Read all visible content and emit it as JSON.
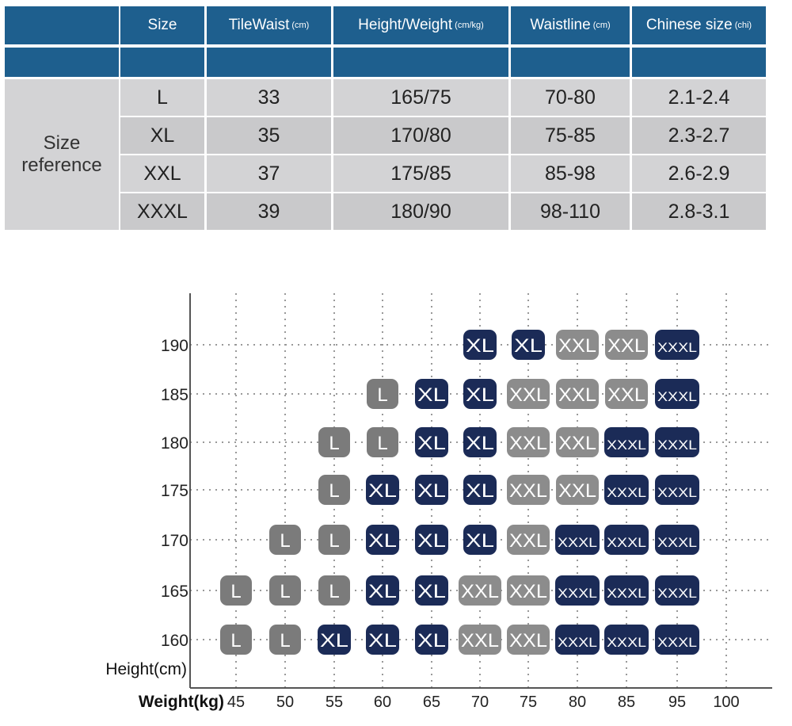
{
  "size_table": {
    "side_label": [
      "Size",
      "reference"
    ],
    "headers": [
      {
        "label": "Size",
        "unit": ""
      },
      {
        "label": "TileWaist",
        "unit": "(cm)"
      },
      {
        "label": "Height/Weight",
        "unit": "(cm/kg)"
      },
      {
        "label": "Waistline",
        "unit": "(cm)"
      },
      {
        "label": "Chinese size",
        "unit": "(chi)"
      }
    ],
    "rows": [
      [
        "L",
        "33",
        "165/75",
        "70-80",
        "2.1-2.4"
      ],
      [
        "XL",
        "35",
        "170/80",
        "75-85",
        "2.3-2.7"
      ],
      [
        "XXL",
        "37",
        "175/85",
        "85-98",
        "2.6-2.9"
      ],
      [
        "XXXL",
        "39",
        "180/90",
        "98-110",
        "2.8-3.1"
      ]
    ],
    "header_color": "#1e5f8e"
  },
  "chart_data": {
    "type": "heatmap",
    "xlabel": "Weight(kg)",
    "ylabel": "Height(cm)",
    "x_ticks": [
      "45",
      "50",
      "55",
      "60",
      "65",
      "70",
      "75",
      "80",
      "85",
      "95",
      "100"
    ],
    "y_ticks": [
      "190",
      "185",
      "180",
      "175",
      "170",
      "165",
      "160"
    ],
    "grid": true,
    "colors": {
      "L": "#7b7b7b",
      "XL": "#1b2b57",
      "XXL": "#8c8c8c",
      "XXXL": "#1b2b57"
    },
    "cells": [
      [
        "",
        "",
        "",
        "",
        "",
        "XL",
        "XL",
        "XXL",
        "XXL",
        "XXXL"
      ],
      [
        "",
        "",
        "",
        "L",
        "XL",
        "XL",
        "XXL",
        "XXL",
        "XXL",
        "XXXL"
      ],
      [
        "",
        "",
        "L",
        "L",
        "XL",
        "XL",
        "XXL",
        "XXL",
        "XXXL",
        "XXXL"
      ],
      [
        "",
        "",
        "L",
        "XL",
        "XL",
        "XL",
        "XXL",
        "XXL",
        "XXXL",
        "XXXL"
      ],
      [
        "",
        "L",
        "L",
        "XL",
        "XL",
        "XL",
        "XXL",
        "XXXL",
        "XXXL",
        "XXXL"
      ],
      [
        "L",
        "L",
        "L",
        "XL",
        "XL",
        "XXL",
        "XXL",
        "XXXL",
        "XXXL",
        "XXXL"
      ],
      [
        "L",
        "L",
        "XL",
        "XL",
        "XL",
        "XXL",
        "XXL",
        "XXXL",
        "XXXL",
        "XXXL"
      ]
    ]
  }
}
